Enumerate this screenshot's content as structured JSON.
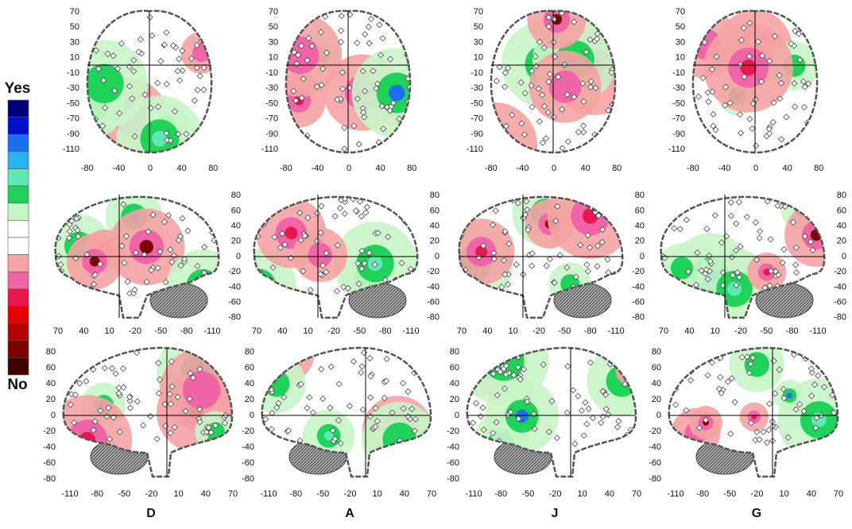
{
  "legend": {
    "top": "Yes",
    "bottom": "No",
    "colors": [
      "#00007a",
      "#0010c8",
      "#1e6ff0",
      "#28b4f0",
      "#5fe8b4",
      "#1ed25a",
      "#c8f5c8",
      "#ffffff",
      "#ffffff",
      "#f5a3a3",
      "#f064a8",
      "#e8174e",
      "#e40000",
      "#b40000",
      "#7a0000",
      "#3c0000"
    ]
  },
  "columns": [
    "D",
    "A",
    "J",
    "G"
  ],
  "rows": [
    {
      "yticks": [
        70,
        50,
        30,
        10,
        -10,
        -30,
        -50,
        -70,
        -90,
        -110
      ],
      "xticks": [
        -80,
        -40,
        0,
        40,
        80
      ]
    },
    {
      "yticks": [
        80,
        60,
        40,
        20,
        0,
        -20,
        -40,
        -60,
        -80
      ],
      "xticks": [
        70,
        40,
        10,
        -20,
        -50,
        -80,
        -110
      ]
    },
    {
      "yticks": [
        80,
        60,
        40,
        20,
        0,
        -20,
        -40,
        -60,
        -80
      ],
      "xticks": [
        -110,
        -80,
        -50,
        -20,
        10,
        40,
        70
      ]
    }
  ]
}
